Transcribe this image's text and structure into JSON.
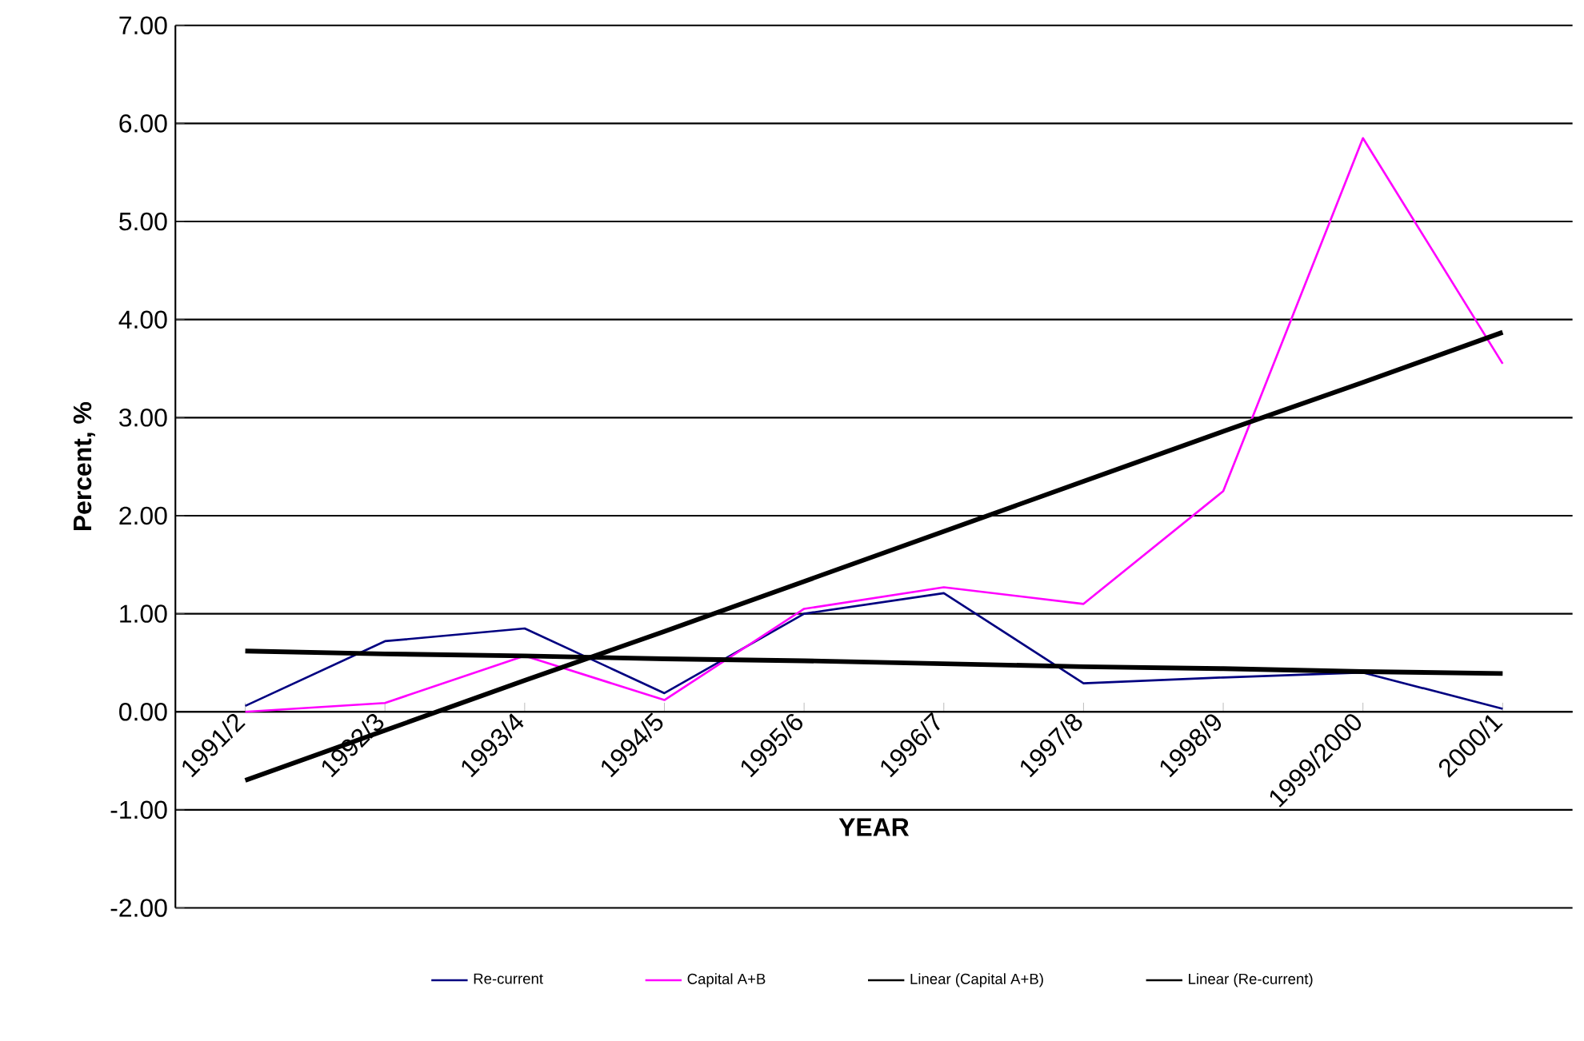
{
  "chart_data": {
    "type": "line",
    "xlabel": "YEAR",
    "ylabel": "Percent, %",
    "categories": [
      "1991/2",
      "1992/3",
      "1993/4",
      "1994/5",
      "1995/6",
      "1996/7",
      "1997/8",
      "1998/9",
      "1999/2000",
      "2000/1"
    ],
    "series": [
      {
        "name": "Re-current",
        "color": "#000080",
        "values": [
          0.06,
          0.72,
          0.85,
          0.19,
          1.0,
          1.21,
          0.29,
          0.35,
          0.4,
          0.03
        ]
      },
      {
        "name": "Capital A+B",
        "color": "#ff00ff",
        "values": [
          0.0,
          0.09,
          0.57,
          0.12,
          1.05,
          1.27,
          1.1,
          2.25,
          5.85,
          3.55
        ]
      },
      {
        "name": "Linear (Capital A+B)",
        "color": "#000000",
        "values": [
          -0.7,
          -0.19,
          0.32,
          0.82,
          1.33,
          1.84,
          2.35,
          2.86,
          3.36,
          3.87
        ]
      },
      {
        "name": "Linear (Re-current)",
        "color": "#000000",
        "values": [
          0.62,
          0.59,
          0.57,
          0.54,
          0.52,
          0.49,
          0.46,
          0.44,
          0.41,
          0.39
        ]
      }
    ],
    "ylim": [
      -2,
      7
    ],
    "yticks": [
      {
        "value": -2,
        "label": "-2.00"
      },
      {
        "value": -1,
        "label": "-1.00"
      },
      {
        "value": 0,
        "label": "0.00"
      },
      {
        "value": 1,
        "label": "1.00"
      },
      {
        "value": 2,
        "label": "2.00"
      },
      {
        "value": 3,
        "label": "3.00"
      },
      {
        "value": 4,
        "label": "4.00"
      },
      {
        "value": 5,
        "label": "5.00"
      },
      {
        "value": 6,
        "label": "6.00"
      },
      {
        "value": 7,
        "label": "7.00"
      }
    ],
    "grid": "y",
    "legend": "bottom",
    "marker": "none",
    "line_style": "solid"
  }
}
